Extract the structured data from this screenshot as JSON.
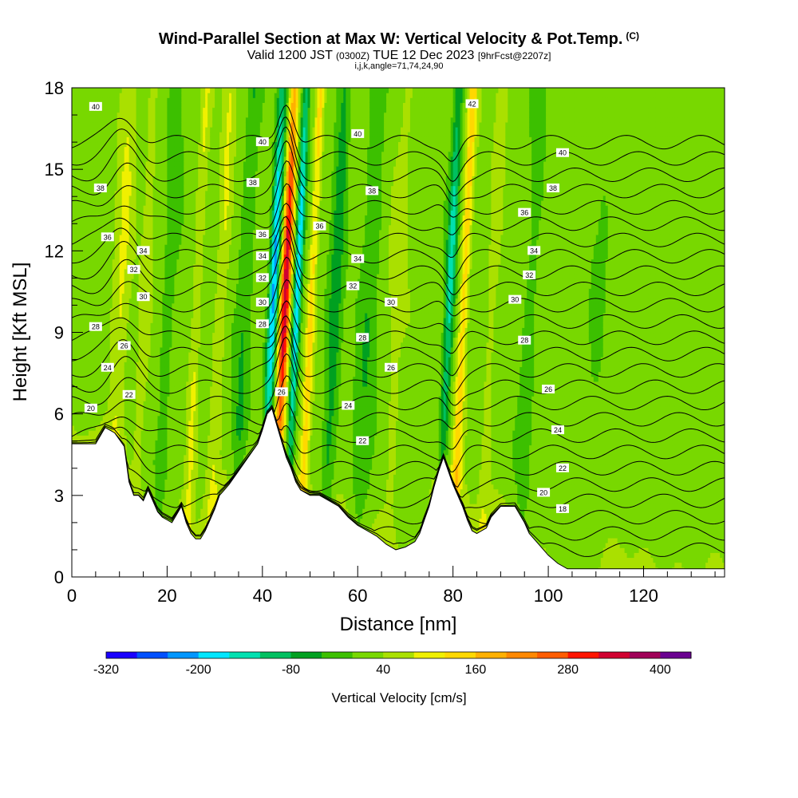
{
  "header": {
    "title": "Wind-Parallel Section at Max W: Vertical Velocity & Pot.Temp.",
    "copyright_mark": "(C)",
    "valid_prefix": "Valid 1200 JST",
    "valid_utc": "(0300Z)",
    "valid_date": "TUE 12 Dec 2023",
    "forecast": "[9hrFcst@2207z]",
    "section_params": "i,j,k,angle=71,74,24,90"
  },
  "chart_data": {
    "type": "heatmap",
    "xlabel": "Distance [nm]",
    "ylabel": "Height [Kft MSL]",
    "xlim": [
      0,
      137
    ],
    "ylim": [
      0,
      18
    ],
    "x_ticks": [
      0,
      20,
      40,
      60,
      80,
      100,
      120
    ],
    "y_ticks": [
      0,
      3,
      6,
      9,
      12,
      15,
      18
    ],
    "colorbar": {
      "title": "Vertical Velocity [cm/s]",
      "min": -320,
      "max": 440,
      "step": 40,
      "tick_labels": [
        "-320",
        "-200",
        "-80",
        "40",
        "160",
        "280",
        "400"
      ],
      "tick_values": [
        -320,
        -200,
        -80,
        40,
        160,
        280,
        400
      ],
      "colors": [
        "#1a00ff",
        "#0050ff",
        "#0096ff",
        "#00e6ff",
        "#00e0b0",
        "#00c060",
        "#00a020",
        "#3cc000",
        "#78d800",
        "#aae000",
        "#f0f000",
        "#ffd800",
        "#ffb000",
        "#ff8800",
        "#ff5c00",
        "#ff1400",
        "#d00030",
        "#a00058",
        "#6a0090"
      ]
    },
    "terrain_kft": [
      [
        0,
        4.9
      ],
      [
        5,
        4.9
      ],
      [
        7,
        5.5
      ],
      [
        9,
        5.3
      ],
      [
        11,
        4.8
      ],
      [
        12,
        3.5
      ],
      [
        13,
        3.0
      ],
      [
        14,
        3.0
      ],
      [
        15,
        2.8
      ],
      [
        16,
        3.2
      ],
      [
        17,
        2.8
      ],
      [
        18,
        2.4
      ],
      [
        19,
        2.2
      ],
      [
        20,
        2.1
      ],
      [
        21,
        2.0
      ],
      [
        22,
        2.3
      ],
      [
        23,
        2.6
      ],
      [
        24,
        2.0
      ],
      [
        25,
        1.6
      ],
      [
        26,
        1.4
      ],
      [
        27,
        1.4
      ],
      [
        28,
        1.7
      ],
      [
        29,
        2.1
      ],
      [
        30,
        2.5
      ],
      [
        31,
        3.0
      ],
      [
        32,
        3.2
      ],
      [
        33,
        3.4
      ],
      [
        35,
        3.9
      ],
      [
        37,
        4.4
      ],
      [
        39,
        4.9
      ],
      [
        40,
        5.4
      ],
      [
        41,
        6.0
      ],
      [
        42,
        6.2
      ],
      [
        43,
        5.6
      ],
      [
        44,
        5.0
      ],
      [
        45,
        4.4
      ],
      [
        46,
        4.0
      ],
      [
        47,
        3.5
      ],
      [
        48,
        3.2
      ],
      [
        50,
        3.0
      ],
      [
        52,
        3.0
      ],
      [
        54,
        2.8
      ],
      [
        56,
        2.6
      ],
      [
        58,
        2.2
      ],
      [
        60,
        1.9
      ],
      [
        62,
        1.7
      ],
      [
        64,
        1.5
      ],
      [
        66,
        1.2
      ],
      [
        68,
        1.0
      ],
      [
        70,
        1.1
      ],
      [
        72,
        1.3
      ],
      [
        73,
        1.6
      ],
      [
        74,
        2.1
      ],
      [
        75,
        2.6
      ],
      [
        76,
        3.3
      ],
      [
        77,
        3.9
      ],
      [
        78,
        4.4
      ],
      [
        79,
        3.9
      ],
      [
        80,
        3.4
      ],
      [
        81,
        3.0
      ],
      [
        82,
        2.6
      ],
      [
        83,
        2.1
      ],
      [
        84,
        1.7
      ],
      [
        85,
        1.6
      ],
      [
        87,
        1.8
      ],
      [
        88,
        2.2
      ],
      [
        90,
        2.6
      ],
      [
        92,
        2.6
      ],
      [
        93,
        2.6
      ],
      [
        94,
        2.3
      ],
      [
        95,
        2.0
      ],
      [
        96,
        1.6
      ],
      [
        98,
        1.2
      ],
      [
        100,
        0.8
      ],
      [
        102,
        0.5
      ],
      [
        104,
        0.3
      ],
      [
        108,
        0.3
      ],
      [
        115,
        0.3
      ],
      [
        125,
        0.3
      ],
      [
        137,
        0.3
      ]
    ],
    "theta_levels": [
      18,
      19,
      20,
      21,
      22,
      23,
      24,
      25,
      26,
      27,
      28,
      29,
      30,
      31,
      32,
      33,
      34,
      35,
      36,
      37,
      38,
      39,
      40,
      41,
      42,
      43
    ],
    "contour_labels": [
      {
        "x": 5,
        "y": 17.3,
        "text": "40"
      },
      {
        "x": 6,
        "y": 14.3,
        "text": "38"
      },
      {
        "x": 7.5,
        "y": 12.5,
        "text": "36"
      },
      {
        "x": 15,
        "y": 12.0,
        "text": "34"
      },
      {
        "x": 13,
        "y": 11.3,
        "text": "32"
      },
      {
        "x": 15,
        "y": 10.3,
        "text": "30"
      },
      {
        "x": 5,
        "y": 9.2,
        "text": "28"
      },
      {
        "x": 11,
        "y": 8.5,
        "text": "26"
      },
      {
        "x": 7.5,
        "y": 7.7,
        "text": "24"
      },
      {
        "x": 12,
        "y": 6.7,
        "text": "22"
      },
      {
        "x": 4,
        "y": 6.2,
        "text": "20"
      },
      {
        "x": 40,
        "y": 16.0,
        "text": "40"
      },
      {
        "x": 38,
        "y": 14.5,
        "text": "38"
      },
      {
        "x": 40,
        "y": 12.6,
        "text": "36"
      },
      {
        "x": 40,
        "y": 11.8,
        "text": "34"
      },
      {
        "x": 40,
        "y": 11.0,
        "text": "32"
      },
      {
        "x": 40,
        "y": 10.1,
        "text": "30"
      },
      {
        "x": 40,
        "y": 9.3,
        "text": "28"
      },
      {
        "x": 44,
        "y": 6.8,
        "text": "26"
      },
      {
        "x": 60,
        "y": 16.3,
        "text": "40"
      },
      {
        "x": 63,
        "y": 14.2,
        "text": "38"
      },
      {
        "x": 52,
        "y": 12.9,
        "text": "36"
      },
      {
        "x": 60,
        "y": 11.7,
        "text": "34"
      },
      {
        "x": 59,
        "y": 10.7,
        "text": "32"
      },
      {
        "x": 67,
        "y": 10.1,
        "text": "30"
      },
      {
        "x": 61,
        "y": 8.8,
        "text": "28"
      },
      {
        "x": 67,
        "y": 7.7,
        "text": "26"
      },
      {
        "x": 58,
        "y": 6.3,
        "text": "24"
      },
      {
        "x": 61,
        "y": 5.0,
        "text": "22"
      },
      {
        "x": 84,
        "y": 17.4,
        "text": "42"
      },
      {
        "x": 103,
        "y": 15.6,
        "text": "40"
      },
      {
        "x": 101,
        "y": 14.3,
        "text": "38"
      },
      {
        "x": 95,
        "y": 13.4,
        "text": "36"
      },
      {
        "x": 97,
        "y": 12.0,
        "text": "34"
      },
      {
        "x": 96,
        "y": 11.1,
        "text": "32"
      },
      {
        "x": 93,
        "y": 10.2,
        "text": "30"
      },
      {
        "x": 95,
        "y": 8.7,
        "text": "28"
      },
      {
        "x": 100,
        "y": 6.9,
        "text": "26"
      },
      {
        "x": 102,
        "y": 5.4,
        "text": "24"
      },
      {
        "x": 103,
        "y": 4.0,
        "text": "22"
      },
      {
        "x": 99,
        "y": 3.1,
        "text": "20"
      },
      {
        "x": 103,
        "y": 2.5,
        "text": "18"
      }
    ],
    "w_features": [
      {
        "x": 10,
        "hw": 1.8,
        "w": 60
      },
      {
        "x": 15,
        "hw": 1.2,
        "w": 40
      },
      {
        "x": 20,
        "hw": 1.5,
        "w": -40
      },
      {
        "x": 26,
        "hw": 1.0,
        "w": 60
      },
      {
        "x": 31,
        "hw": 1.2,
        "w": 60
      },
      {
        "x": 36,
        "hw": 1.5,
        "w": -60
      },
      {
        "x": 42,
        "hw": 1.0,
        "w": -240
      },
      {
        "x": 44.5,
        "hw": 1.0,
        "w": 330
      },
      {
        "x": 47,
        "hw": 0.8,
        "w": -220
      },
      {
        "x": 50,
        "hw": 0.9,
        "w": 110
      },
      {
        "x": 55,
        "hw": 1.5,
        "w": -80
      },
      {
        "x": 62,
        "hw": 2.0,
        "w": -50
      },
      {
        "x": 68,
        "hw": 2.0,
        "w": 30
      },
      {
        "x": 79,
        "hw": 1.0,
        "w": -160
      },
      {
        "x": 82,
        "hw": 1.0,
        "w": 120
      },
      {
        "x": 88,
        "hw": 1.2,
        "w": 40
      },
      {
        "x": 96,
        "hw": 1.5,
        "w": -40
      },
      {
        "x": 110,
        "hw": 2.0,
        "w": -20
      }
    ]
  }
}
